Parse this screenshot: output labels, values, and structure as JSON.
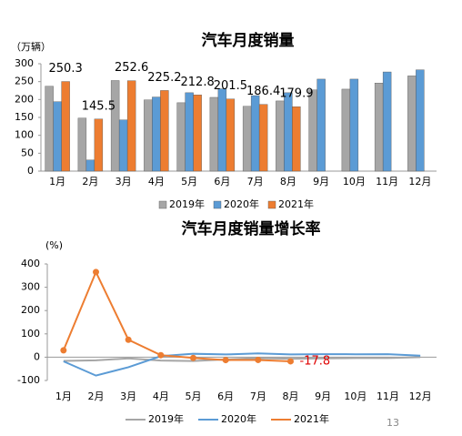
{
  "page_number": "13",
  "chart_data": [
    {
      "type": "bar",
      "title": "汽车月度销量",
      "y_label": "（万辆）",
      "categories": [
        "1月",
        "2月",
        "3月",
        "4月",
        "5月",
        "6月",
        "7月",
        "8月",
        "9月",
        "10月",
        "11月",
        "12月"
      ],
      "series": [
        {
          "name": "2019年",
          "color": "#a6a6a6",
          "values": [
            237,
            148,
            253,
            199,
            191,
            206,
            181,
            196,
            227,
            229,
            246,
            266
          ]
        },
        {
          "name": "2020年",
          "color": "#5b9bd5",
          "values": [
            194,
            31,
            143,
            207,
            219,
            230,
            211,
            219,
            257,
            257,
            277,
            283
          ]
        },
        {
          "name": "2021年",
          "color": "#ed7d31",
          "values": [
            250.3,
            145.5,
            252.6,
            225.2,
            212.8,
            201.5,
            186.4,
            179.9,
            null,
            null,
            null,
            null
          ],
          "show_labels": "all",
          "label_color": "#000000"
        }
      ],
      "ylim": [
        0,
        300
      ],
      "yticks": [
        0,
        50,
        100,
        150,
        200,
        250,
        300
      ],
      "grid": false
    },
    {
      "type": "line",
      "title": "汽车月度销量增长率",
      "y_label": "(%)",
      "categories": [
        "1月",
        "2月",
        "3月",
        "4月",
        "5月",
        "6月",
        "7月",
        "8月",
        "9月",
        "10月",
        "11月",
        "12月"
      ],
      "series": [
        {
          "name": "2019年",
          "color": "#a6a6a6",
          "values": [
            -15.8,
            -13.8,
            -5.2,
            -14.6,
            -16.4,
            -9.6,
            -4.3,
            -6.9,
            -5.2,
            -4,
            -3.6,
            0.1
          ]
        },
        {
          "name": "2020年",
          "color": "#5b9bd5",
          "values": [
            -18,
            -79,
            -43,
            4.4,
            14.5,
            11.6,
            16.4,
            11.6,
            12.8,
            12.5,
            12.6,
            6.4
          ]
        },
        {
          "name": "2021年",
          "color": "#ed7d31",
          "values": [
            29.5,
            365.2,
            74.9,
            8.6,
            -3.1,
            -12.4,
            -11.9,
            -17.8,
            null,
            null,
            null,
            null
          ],
          "marker": true,
          "show_labels": "last",
          "label_color": "#e00000"
        }
      ],
      "ylim": [
        -100,
        400
      ],
      "yticks": [
        -100,
        0,
        100,
        200,
        300,
        400
      ],
      "grid": false
    }
  ]
}
